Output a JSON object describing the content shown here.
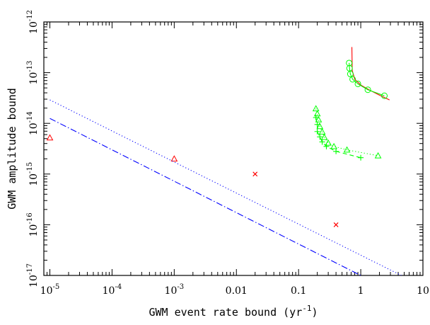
{
  "chart_data": {
    "type": "scatter",
    "title": "",
    "xlabel": "GWM event rate bound (yr",
    "xlabel_sup": "-1",
    "xlabel_end": ")",
    "ylabel": "GWM amplitude bound",
    "xscale": "log",
    "yscale": "log",
    "xlim": [
      8e-06,
      10
    ],
    "ylim": [
      1e-17,
      1e-12
    ],
    "x_ticks": [
      {
        "value": 1e-05,
        "mant": "10",
        "exp": "-5"
      },
      {
        "value": 0.0001,
        "mant": "10",
        "exp": "-4"
      },
      {
        "value": 0.001,
        "mant": "10",
        "exp": "-3"
      },
      {
        "value": 0.01,
        "mant": "0.01",
        "exp": ""
      },
      {
        "value": 0.1,
        "mant": "0.1",
        "exp": ""
      },
      {
        "value": 1,
        "mant": "1",
        "exp": ""
      },
      {
        "value": 10,
        "mant": "10",
        "exp": ""
      }
    ],
    "y_ticks": [
      {
        "value": 1e-17,
        "mant": "10",
        "exp": "-17"
      },
      {
        "value": 1e-16,
        "mant": "10",
        "exp": "-16"
      },
      {
        "value": 1e-15,
        "mant": "10",
        "exp": "-15"
      },
      {
        "value": 1e-14,
        "mant": "10",
        "exp": "-14"
      },
      {
        "value": 1e-13,
        "mant": "10",
        "exp": "-13"
      },
      {
        "value": 1e-12,
        "mant": "10",
        "exp": "-12"
      }
    ],
    "series": [
      {
        "marker": "triangle",
        "color": "#ff0000",
        "points": [
          [
            1e-05,
            5.2e-15
          ],
          [
            0.001,
            2e-15
          ]
        ]
      },
      {
        "marker": "cross",
        "color": "#ff0000",
        "points": [
          [
            0.02,
            1e-15
          ],
          [
            0.4,
            1e-16
          ]
        ]
      },
      {
        "line": "dotted",
        "color": "#0000ff",
        "points": [
          [
            1e-05,
            2.9e-14
          ],
          [
            4.5,
            1e-17
          ]
        ]
      },
      {
        "line": "dashdot",
        "color": "#0000ff",
        "points": [
          [
            1e-05,
            1.25e-14
          ],
          [
            1.0,
            1e-17
          ]
        ]
      },
      {
        "line": "solid",
        "color": "#ff0000",
        "points": [
          [
            0.72,
            3.2e-13
          ],
          [
            0.73,
            1.1e-13
          ],
          [
            0.8,
            7.4e-14
          ],
          [
            1.0,
            5.7e-14
          ],
          [
            1.4,
            4.5e-14
          ],
          [
            2.0,
            3.6e-14
          ],
          [
            2.9,
            2.9e-14
          ]
        ]
      },
      {
        "marker": "circle",
        "color": "#00ff00",
        "line": "solid",
        "points": [
          [
            0.65,
            1.55e-13
          ],
          [
            0.66,
            1.22e-13
          ],
          [
            0.68,
            9.4e-14
          ],
          [
            0.74,
            7.4e-14
          ],
          [
            0.9,
            6e-14
          ],
          [
            1.3,
            4.6e-14
          ],
          [
            2.4,
            3.5e-14
          ]
        ]
      },
      {
        "marker": "triangle",
        "color": "#00ff00",
        "line": "dotted",
        "points": [
          [
            0.19,
            1.95e-14
          ],
          [
            0.2,
            1.55e-14
          ],
          [
            0.21,
            1.18e-14
          ],
          [
            0.22,
            8.7e-15
          ],
          [
            0.24,
            6.8e-15
          ],
          [
            0.26,
            5.3e-15
          ],
          [
            0.3,
            4.1e-15
          ],
          [
            0.37,
            3.5e-15
          ],
          [
            0.6,
            3e-15
          ],
          [
            1.9,
            2.3e-15
          ]
        ]
      },
      {
        "marker": "plus",
        "color": "#00ff00",
        "line": "dashed",
        "points": [
          [
            0.19,
            1.3e-14
          ],
          [
            0.2,
            9.5e-15
          ],
          [
            0.2,
            6.9e-15
          ],
          [
            0.22,
            5.4e-15
          ],
          [
            0.24,
            4.3e-15
          ],
          [
            0.28,
            3.5e-15
          ],
          [
            0.4,
            2.8e-15
          ],
          [
            1.0,
            2.1e-15
          ]
        ]
      }
    ]
  }
}
